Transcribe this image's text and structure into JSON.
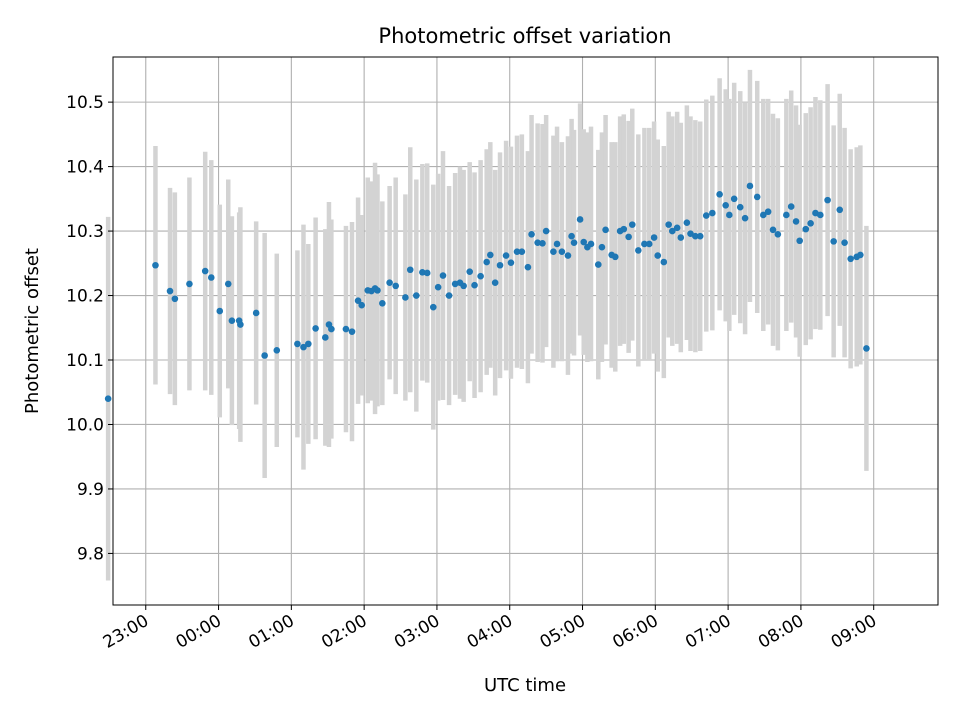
{
  "chart_data": {
    "type": "scatter",
    "title": "Photometric offset variation",
    "xlabel": "UTC time",
    "ylabel": "Photometric offset",
    "x_unit": "hours",
    "xlim": [
      "22:33",
      "09:53"
    ],
    "ylim": [
      9.72,
      10.57
    ],
    "grid": true,
    "legend": "none",
    "x_ticks": [
      "23:00",
      "00:00",
      "01:00",
      "02:00",
      "03:00",
      "04:00",
      "05:00",
      "06:00",
      "07:00",
      "08:00",
      "09:00"
    ],
    "y_ticks": [
      "9.8",
      "9.9",
      "10.0",
      "10.1",
      "10.2",
      "10.3",
      "10.4",
      "10.5"
    ],
    "points_x": [
      "22:29",
      "23:08",
      "23:20",
      "23:24",
      "23:36",
      "23:49",
      "23:54",
      "00:01",
      "00:08",
      "00:11",
      "00:17",
      "00:18",
      "00:31",
      "00:38",
      "00:48",
      "01:05",
      "01:10",
      "01:14",
      "01:20",
      "01:28",
      "01:31",
      "01:33",
      "01:45",
      "01:50",
      "01:55",
      "01:58",
      "02:03",
      "02:06",
      "02:09",
      "02:11",
      "02:15",
      "02:21",
      "02:26",
      "02:34",
      "02:38",
      "02:43",
      "02:48",
      "02:52",
      "02:57",
      "03:01",
      "03:05",
      "03:10",
      "03:15",
      "03:19",
      "03:22",
      "03:27",
      "03:31",
      "03:36",
      "03:41",
      "03:44",
      "03:48",
      "03:52",
      "03:57",
      "04:01",
      "04:06",
      "04:10",
      "04:15",
      "04:18",
      "04:23",
      "04:27",
      "04:30",
      "04:36",
      "04:39",
      "04:43",
      "04:48",
      "04:51",
      "04:53",
      "04:58",
      "05:01",
      "05:04",
      "05:07",
      "05:13",
      "05:16",
      "05:19",
      "05:24",
      "05:27",
      "05:31",
      "05:34",
      "05:38",
      "05:41",
      "05:46",
      "05:51",
      "05:55",
      "05:59",
      "06:02",
      "06:07",
      "06:11",
      "06:14",
      "06:18",
      "06:21",
      "06:26",
      "06:29",
      "06:33",
      "06:37",
      "06:42",
      "06:47",
      "06:53",
      "06:58",
      "07:01",
      "07:05",
      "07:10",
      "07:14",
      "07:18",
      "07:24",
      "07:29",
      "07:33",
      "07:37",
      "07:41",
      "07:48",
      "07:52",
      "07:56",
      "07:59",
      "08:04",
      "08:08",
      "08:12",
      "08:16",
      "08:22",
      "08:27",
      "08:32",
      "08:36",
      "08:41",
      "08:46",
      "08:49",
      "08:54"
    ],
    "points_y": [
      10.04,
      10.247,
      10.207,
      10.195,
      10.218,
      10.238,
      10.228,
      10.176,
      10.218,
      10.161,
      10.161,
      10.155,
      10.173,
      10.107,
      10.115,
      10.125,
      10.12,
      10.125,
      10.149,
      10.135,
      10.155,
      10.148,
      10.148,
      10.144,
      10.192,
      10.185,
      10.208,
      10.207,
      10.211,
      10.208,
      10.188,
      10.22,
      10.215,
      10.197,
      10.24,
      10.2,
      10.236,
      10.235,
      10.182,
      10.213,
      10.231,
      10.2,
      10.218,
      10.22,
      10.215,
      10.237,
      10.216,
      10.23,
      10.252,
      10.263,
      10.22,
      10.247,
      10.262,
      10.251,
      10.268,
      10.268,
      10.244,
      10.295,
      10.282,
      10.281,
      10.3,
      10.268,
      10.28,
      10.268,
      10.262,
      10.292,
      10.282,
      10.318,
      10.283,
      10.275,
      10.28,
      10.248,
      10.275,
      10.302,
      10.263,
      10.26,
      10.3,
      10.303,
      10.291,
      10.31,
      10.27,
      10.28,
      10.28,
      10.29,
      10.262,
      10.252,
      10.31,
      10.3,
      10.305,
      10.29,
      10.313,
      10.296,
      10.292,
      10.292,
      10.324,
      10.328,
      10.357,
      10.34,
      10.325,
      10.35,
      10.337,
      10.32,
      10.37,
      10.353,
      10.325,
      10.33,
      10.302,
      10.295,
      10.325,
      10.338,
      10.315,
      10.285,
      10.303,
      10.312,
      10.328,
      10.325,
      10.348,
      10.284,
      10.333,
      10.282,
      10.257,
      10.26,
      10.263,
      10.118
    ],
    "errors": [
      0.282,
      0.185,
      0.16,
      0.165,
      0.165,
      0.185,
      0.182,
      0.165,
      0.162,
      0.162,
      0.168,
      0.182,
      0.142,
      0.19,
      0.15,
      0.145,
      0.19,
      0.155,
      0.172,
      0.168,
      0.19,
      0.17,
      0.16,
      0.17,
      0.16,
      0.14,
      0.175,
      0.17,
      0.195,
      0.18,
      0.158,
      0.15,
      0.168,
      0.16,
      0.19,
      0.18,
      0.168,
      0.17,
      0.19,
      0.176,
      0.193,
      0.17,
      0.172,
      0.18,
      0.18,
      0.17,
      0.175,
      0.18,
      0.175,
      0.175,
      0.175,
      0.175,
      0.178,
      0.18,
      0.18,
      0.182,
      0.18,
      0.185,
      0.185,
      0.185,
      0.18,
      0.18,
      0.182,
      0.17,
      0.185,
      0.182,
      0.175,
      0.18,
      0.175,
      0.178,
      0.182,
      0.178,
      0.178,
      0.178,
      0.175,
      0.178,
      0.178,
      0.178,
      0.18,
      0.18,
      0.18,
      0.18,
      0.18,
      0.18,
      0.18,
      0.18,
      0.175,
      0.178,
      0.18,
      0.178,
      0.182,
      0.182,
      0.18,
      0.178,
      0.18,
      0.182,
      0.18,
      0.18,
      0.18,
      0.18,
      0.18,
      0.18,
      0.18,
      0.18,
      0.18,
      0.175,
      0.18,
      0.18,
      0.18,
      0.18,
      0.18,
      0.18,
      0.18,
      0.18,
      0.18,
      0.178,
      0.18,
      0.18,
      0.18,
      0.178,
      0.17,
      0.17,
      0.17,
      0.19
    ]
  },
  "colors": {
    "marker": "#1f77b4",
    "errorbar": "#d3d3d3",
    "grid": "#b0b0b0",
    "axis": "#000000"
  }
}
